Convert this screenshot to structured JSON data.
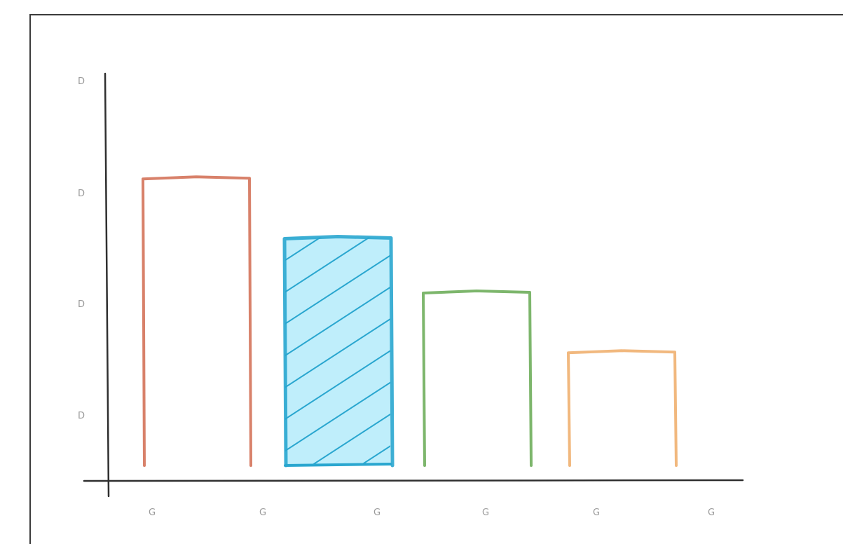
{
  "chart_data": {
    "type": "bar",
    "style": "hand-drawn sketch",
    "title": "",
    "xlabel": "",
    "ylabel": "",
    "x_tick_labels": [
      "G",
      "G",
      "G",
      "G",
      "G",
      "G"
    ],
    "y_tick_labels": [
      "D",
      "D",
      "D",
      "D"
    ],
    "ylim": [
      0,
      4
    ],
    "grid": false,
    "legend": "none",
    "bars": [
      {
        "value": 2.65,
        "color": "#d4735a",
        "fill": "none"
      },
      {
        "value": 2.1,
        "color": "#29a6cf",
        "fill": "hachure",
        "fill_color": "#bfeefb"
      },
      {
        "value": 1.6,
        "color": "#6fae5c",
        "fill": "none"
      },
      {
        "value": 1.05,
        "color": "#f0b070",
        "fill": "none"
      }
    ],
    "colors": {
      "axis": "#2f2f2f",
      "tick_text": "#9a9a9a",
      "frame": "#3b3b3b"
    }
  }
}
